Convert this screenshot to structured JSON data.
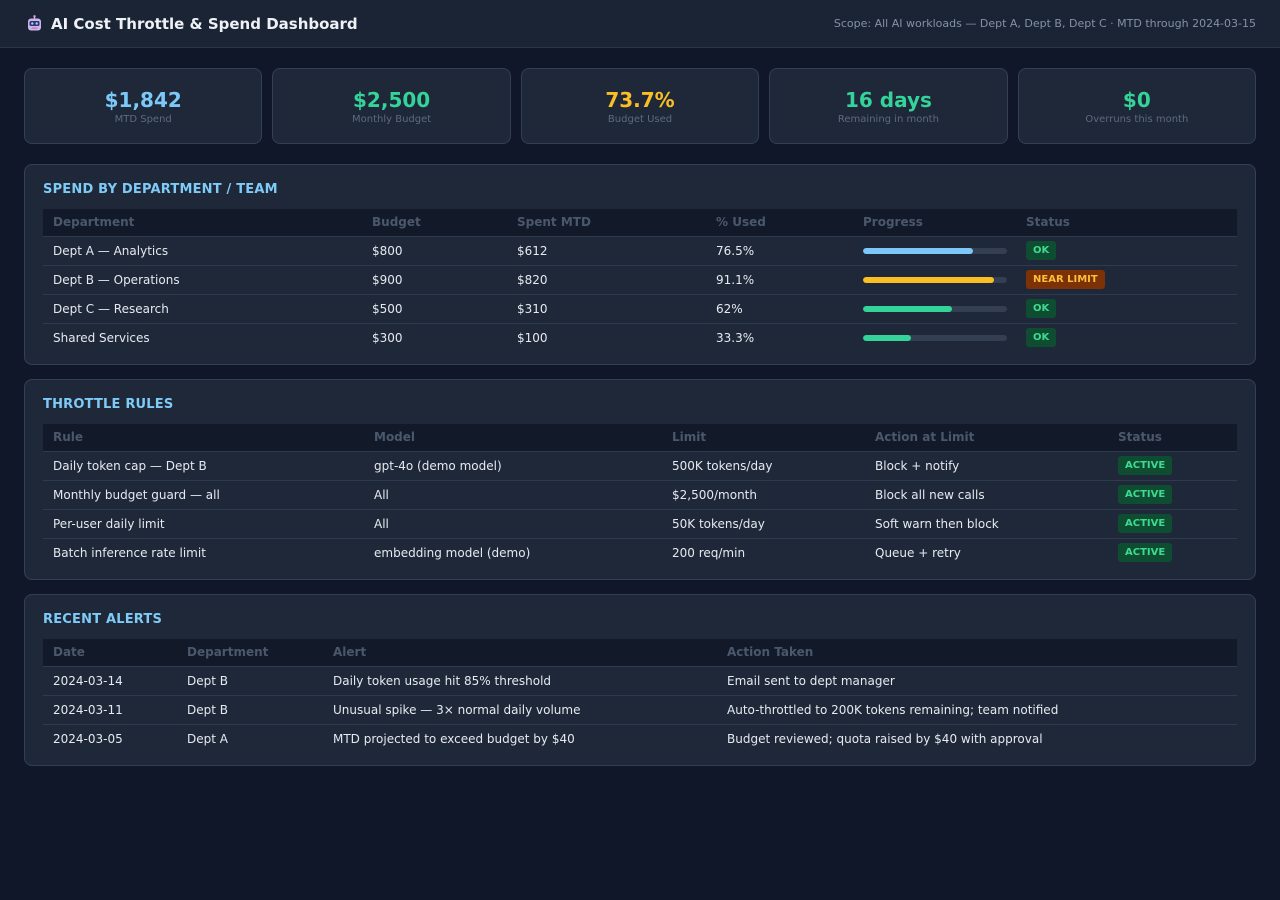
{
  "header": {
    "title": "AI Cost Throttle & Spend Dashboard",
    "icon": "robot-icon",
    "scope": "Scope: All AI workloads — Dept A, Dept B, Dept C · MTD through 2024-03-15"
  },
  "kpis": [
    {
      "value": "$1,842",
      "label": "MTD Spend",
      "color": "#7cc8f8"
    },
    {
      "value": "$2,500",
      "label": "Monthly Budget",
      "color": "#34d399"
    },
    {
      "value": "73.7%",
      "label": "Budget Used",
      "color": "#fbbf24"
    },
    {
      "value": "16 days",
      "label": "Remaining in month",
      "color": "#34d399"
    },
    {
      "value": "$0",
      "label": "Overruns this month",
      "color": "#34d399"
    }
  ],
  "spend": {
    "title": "SPEND BY DEPARTMENT / TEAM",
    "columns": [
      "Department",
      "Budget",
      "Spent MTD",
      "% Used",
      "Progress",
      "Status"
    ],
    "rows": [
      {
        "department": "Dept A — Analytics",
        "budget": "$800",
        "spent": "$612",
        "used": "76.5%",
        "progress": 76.5,
        "bar_color": "#7cc8f8",
        "status": "OK",
        "status_type": "ok"
      },
      {
        "department": "Dept B — Operations",
        "budget": "$900",
        "spent": "$820",
        "used": "91.1%",
        "progress": 91.1,
        "bar_color": "#fbbf24",
        "status": "NEAR LIMIT",
        "status_type": "warn"
      },
      {
        "department": "Dept C — Research",
        "budget": "$500",
        "spent": "$310",
        "used": "62%",
        "progress": 62,
        "bar_color": "#34d399",
        "status": "OK",
        "status_type": "ok"
      },
      {
        "department": "Shared Services",
        "budget": "$300",
        "spent": "$100",
        "used": "33.3%",
        "progress": 33.3,
        "bar_color": "#34d399",
        "status": "OK",
        "status_type": "ok"
      }
    ]
  },
  "rules": {
    "title": "THROTTLE RULES",
    "columns": [
      "Rule",
      "Model",
      "Limit",
      "Action at Limit",
      "Status"
    ],
    "rows": [
      {
        "rule": "Daily token cap — Dept B",
        "model": "gpt-4o (demo model)",
        "limit": "500K tokens/day",
        "action": "Block + notify",
        "status": "ACTIVE"
      },
      {
        "rule": "Monthly budget guard — all",
        "model": "All",
        "limit": "$2,500/month",
        "action": "Block all new calls",
        "status": "ACTIVE"
      },
      {
        "rule": "Per-user daily limit",
        "model": "All",
        "limit": "50K tokens/day",
        "action": "Soft warn then block",
        "status": "ACTIVE"
      },
      {
        "rule": "Batch inference rate limit",
        "model": "embedding model (demo)",
        "limit": "200 req/min",
        "action": "Queue + retry",
        "status": "ACTIVE"
      }
    ]
  },
  "alerts": {
    "title": "RECENT ALERTS",
    "columns": [
      "Date",
      "Department",
      "Alert",
      "Action Taken"
    ],
    "rows": [
      {
        "date": "2024-03-14",
        "department": "Dept B",
        "alert": "Daily token usage hit 85% threshold",
        "action": "Email sent to dept manager"
      },
      {
        "date": "2024-03-11",
        "department": "Dept B",
        "alert": "Unusual spike — 3× normal daily volume",
        "action": "Auto-throttled to 200K tokens remaining; team notified"
      },
      {
        "date": "2024-03-05",
        "department": "Dept A",
        "alert": "MTD projected to exceed budget by $40",
        "action": "Budget reviewed; quota raised by $40 with approval"
      }
    ]
  }
}
